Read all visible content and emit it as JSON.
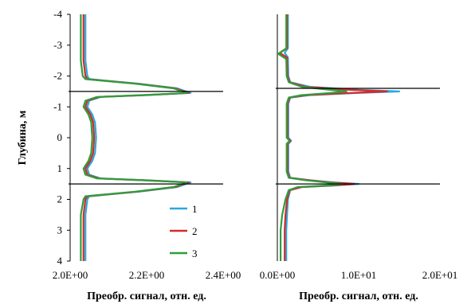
{
  "chart_data": [
    {
      "type": "line",
      "title": "",
      "xlabel": "Преобр. сигнал, отн. ед.",
      "ylabel": "Глубина, м",
      "xlim": [
        2.0,
        2.4
      ],
      "ylim": [
        -4,
        4
      ],
      "y_inverted": true,
      "x_ticks": [
        "2.0E+00",
        "2.2E+00",
        "2.4E+00"
      ],
      "x_tick_values": [
        2.0,
        2.2,
        2.4
      ],
      "y_ticks": [
        "-4",
        "-3",
        "-2",
        "-1",
        "0",
        "1",
        "2",
        "3",
        "4"
      ],
      "y_tick_values": [
        -4,
        -3,
        -2,
        -1,
        0,
        1,
        2,
        3,
        4
      ],
      "grid": false,
      "hlines": [
        -1.5,
        1.5
      ],
      "legend": {
        "placement": "bottom-right"
      },
      "series": [
        {
          "name": "1",
          "color": "#2aa8df",
          "points": [
            [
              2.04,
              -4
            ],
            [
              2.04,
              -2.5
            ],
            [
              2.045,
              -2.0
            ],
            [
              2.05,
              -1.9
            ],
            [
              2.18,
              -1.75
            ],
            [
              2.28,
              -1.6
            ],
            [
              2.315,
              -1.45
            ],
            [
              2.2,
              -1.38
            ],
            [
              2.08,
              -1.32
            ],
            [
              2.05,
              -1.2
            ],
            [
              2.045,
              -1.0
            ],
            [
              2.058,
              -0.75
            ],
            [
              2.065,
              -0.5
            ],
            [
              2.068,
              0
            ],
            [
              2.065,
              0.5
            ],
            [
              2.058,
              0.75
            ],
            [
              2.045,
              1.0
            ],
            [
              2.05,
              1.2
            ],
            [
              2.08,
              1.32
            ],
            [
              2.2,
              1.38
            ],
            [
              2.315,
              1.45
            ],
            [
              2.28,
              1.6
            ],
            [
              2.18,
              1.75
            ],
            [
              2.05,
              1.9
            ],
            [
              2.045,
              2.0
            ],
            [
              2.04,
              2.5
            ],
            [
              2.04,
              4
            ]
          ]
        },
        {
          "name": "2",
          "color": "#d42a2a",
          "points": [
            [
              2.035,
              -4
            ],
            [
              2.035,
              -2.5
            ],
            [
              2.04,
              -2.0
            ],
            [
              2.045,
              -1.9
            ],
            [
              2.175,
              -1.75
            ],
            [
              2.275,
              -1.6
            ],
            [
              2.31,
              -1.45
            ],
            [
              2.195,
              -1.38
            ],
            [
              2.075,
              -1.32
            ],
            [
              2.045,
              -1.2
            ],
            [
              2.04,
              -1.0
            ],
            [
              2.053,
              -0.75
            ],
            [
              2.06,
              -0.5
            ],
            [
              2.063,
              0
            ],
            [
              2.06,
              0.5
            ],
            [
              2.053,
              0.75
            ],
            [
              2.04,
              1.0
            ],
            [
              2.045,
              1.2
            ],
            [
              2.075,
              1.32
            ],
            [
              2.195,
              1.38
            ],
            [
              2.31,
              1.45
            ],
            [
              2.275,
              1.6
            ],
            [
              2.175,
              1.75
            ],
            [
              2.045,
              1.9
            ],
            [
              2.04,
              2.0
            ],
            [
              2.035,
              2.5
            ],
            [
              2.035,
              4
            ]
          ]
        },
        {
          "name": "3",
          "color": "#2e9e3c",
          "points": [
            [
              2.028,
              -4
            ],
            [
              2.028,
              -2.5
            ],
            [
              2.033,
              -2.0
            ],
            [
              2.04,
              -1.9
            ],
            [
              2.17,
              -1.75
            ],
            [
              2.27,
              -1.6
            ],
            [
              2.305,
              -1.45
            ],
            [
              2.19,
              -1.38
            ],
            [
              2.07,
              -1.32
            ],
            [
              2.04,
              -1.2
            ],
            [
              2.035,
              -1.0
            ],
            [
              2.048,
              -0.75
            ],
            [
              2.055,
              -0.5
            ],
            [
              2.058,
              0
            ],
            [
              2.055,
              0.5
            ],
            [
              2.048,
              0.75
            ],
            [
              2.035,
              1.0
            ],
            [
              2.04,
              1.2
            ],
            [
              2.07,
              1.32
            ],
            [
              2.19,
              1.38
            ],
            [
              2.305,
              1.45
            ],
            [
              2.27,
              1.6
            ],
            [
              2.17,
              1.75
            ],
            [
              2.04,
              1.9
            ],
            [
              2.035,
              2.0
            ],
            [
              2.028,
              2.5
            ],
            [
              2.028,
              4
            ]
          ]
        }
      ]
    },
    {
      "type": "line",
      "title": "",
      "xlabel": "Преобр. сигнал, отн. ед.",
      "ylabel": "",
      "xlim": [
        0,
        20
      ],
      "ylim": [
        -4,
        4
      ],
      "y_inverted": true,
      "x_ticks": [
        "0.0E+00",
        "1.0E+01",
        "2.0E+01"
      ],
      "x_tick_values": [
        0,
        10,
        20
      ],
      "y_ticks": [],
      "grid": false,
      "hlines": [
        -1.6,
        1.5
      ],
      "series": [
        {
          "name": "1",
          "color": "#2aa8df",
          "points": [
            [
              1.3,
              -4
            ],
            [
              1.3,
              -2.9
            ],
            [
              0.9,
              -2.75
            ],
            [
              1.3,
              -2.6
            ],
            [
              1.35,
              -2.0
            ],
            [
              1.6,
              -1.8
            ],
            [
              4,
              -1.65
            ],
            [
              10,
              -1.55
            ],
            [
              15,
              -1.5
            ],
            [
              10,
              -1.45
            ],
            [
              4,
              -1.38
            ],
            [
              1.6,
              -1.3
            ],
            [
              1.35,
              -1.1
            ],
            [
              1.35,
              0.0
            ],
            [
              1.7,
              0.1
            ],
            [
              1.35,
              0.2
            ],
            [
              1.35,
              1.1
            ],
            [
              1.6,
              1.3
            ],
            [
              4,
              1.38
            ],
            [
              7,
              1.45
            ],
            [
              10,
              1.5
            ],
            [
              7,
              1.55
            ],
            [
              3,
              1.6
            ],
            [
              1.6,
              1.7
            ],
            [
              1.3,
              2.0
            ],
            [
              1.2,
              2.5
            ],
            [
              1.1,
              3
            ],
            [
              1.1,
              4
            ]
          ]
        },
        {
          "name": "2",
          "color": "#d42a2a",
          "points": [
            [
              1.2,
              -4
            ],
            [
              1.2,
              -2.9
            ],
            [
              0.3,
              -2.75
            ],
            [
              1.2,
              -2.6
            ],
            [
              1.25,
              -2.0
            ],
            [
              1.5,
              -1.8
            ],
            [
              3.5,
              -1.65
            ],
            [
              9,
              -1.55
            ],
            [
              13.5,
              -1.5
            ],
            [
              9,
              -1.45
            ],
            [
              3.5,
              -1.38
            ],
            [
              1.5,
              -1.3
            ],
            [
              1.25,
              -1.1
            ],
            [
              1.25,
              0.0
            ],
            [
              1.6,
              0.1
            ],
            [
              1.25,
              0.2
            ],
            [
              1.25,
              1.1
            ],
            [
              1.5,
              1.3
            ],
            [
              4,
              1.38
            ],
            [
              6.5,
              1.45
            ],
            [
              9.5,
              1.5
            ],
            [
              6.5,
              1.55
            ],
            [
              3,
              1.6
            ],
            [
              1.5,
              1.7
            ],
            [
              1.2,
              2.0
            ],
            [
              1.0,
              2.5
            ],
            [
              0.9,
              3
            ],
            [
              0.9,
              4
            ]
          ]
        },
        {
          "name": "3",
          "color": "#2e9e3c",
          "points": [
            [
              1.1,
              -4
            ],
            [
              1.1,
              -2.9
            ],
            [
              0.1,
              -2.72
            ],
            [
              1.1,
              -2.55
            ],
            [
              1.15,
              -2.0
            ],
            [
              1.4,
              -1.8
            ],
            [
              3,
              -1.65
            ],
            [
              6.5,
              -1.55
            ],
            [
              8.5,
              -1.5
            ],
            [
              6.5,
              -1.45
            ],
            [
              3,
              -1.38
            ],
            [
              1.4,
              -1.3
            ],
            [
              1.15,
              -1.1
            ],
            [
              1.15,
              0.0
            ],
            [
              1.5,
              0.1
            ],
            [
              1.15,
              0.2
            ],
            [
              1.15,
              1.1
            ],
            [
              1.4,
              1.3
            ],
            [
              3.5,
              1.38
            ],
            [
              6,
              1.45
            ],
            [
              8,
              1.5
            ],
            [
              6,
              1.55
            ],
            [
              2.5,
              1.6
            ],
            [
              1.4,
              1.7
            ],
            [
              1.0,
              2.0
            ],
            [
              0.6,
              2.5
            ],
            [
              0.4,
              3
            ],
            [
              0.4,
              4
            ]
          ]
        }
      ]
    }
  ]
}
